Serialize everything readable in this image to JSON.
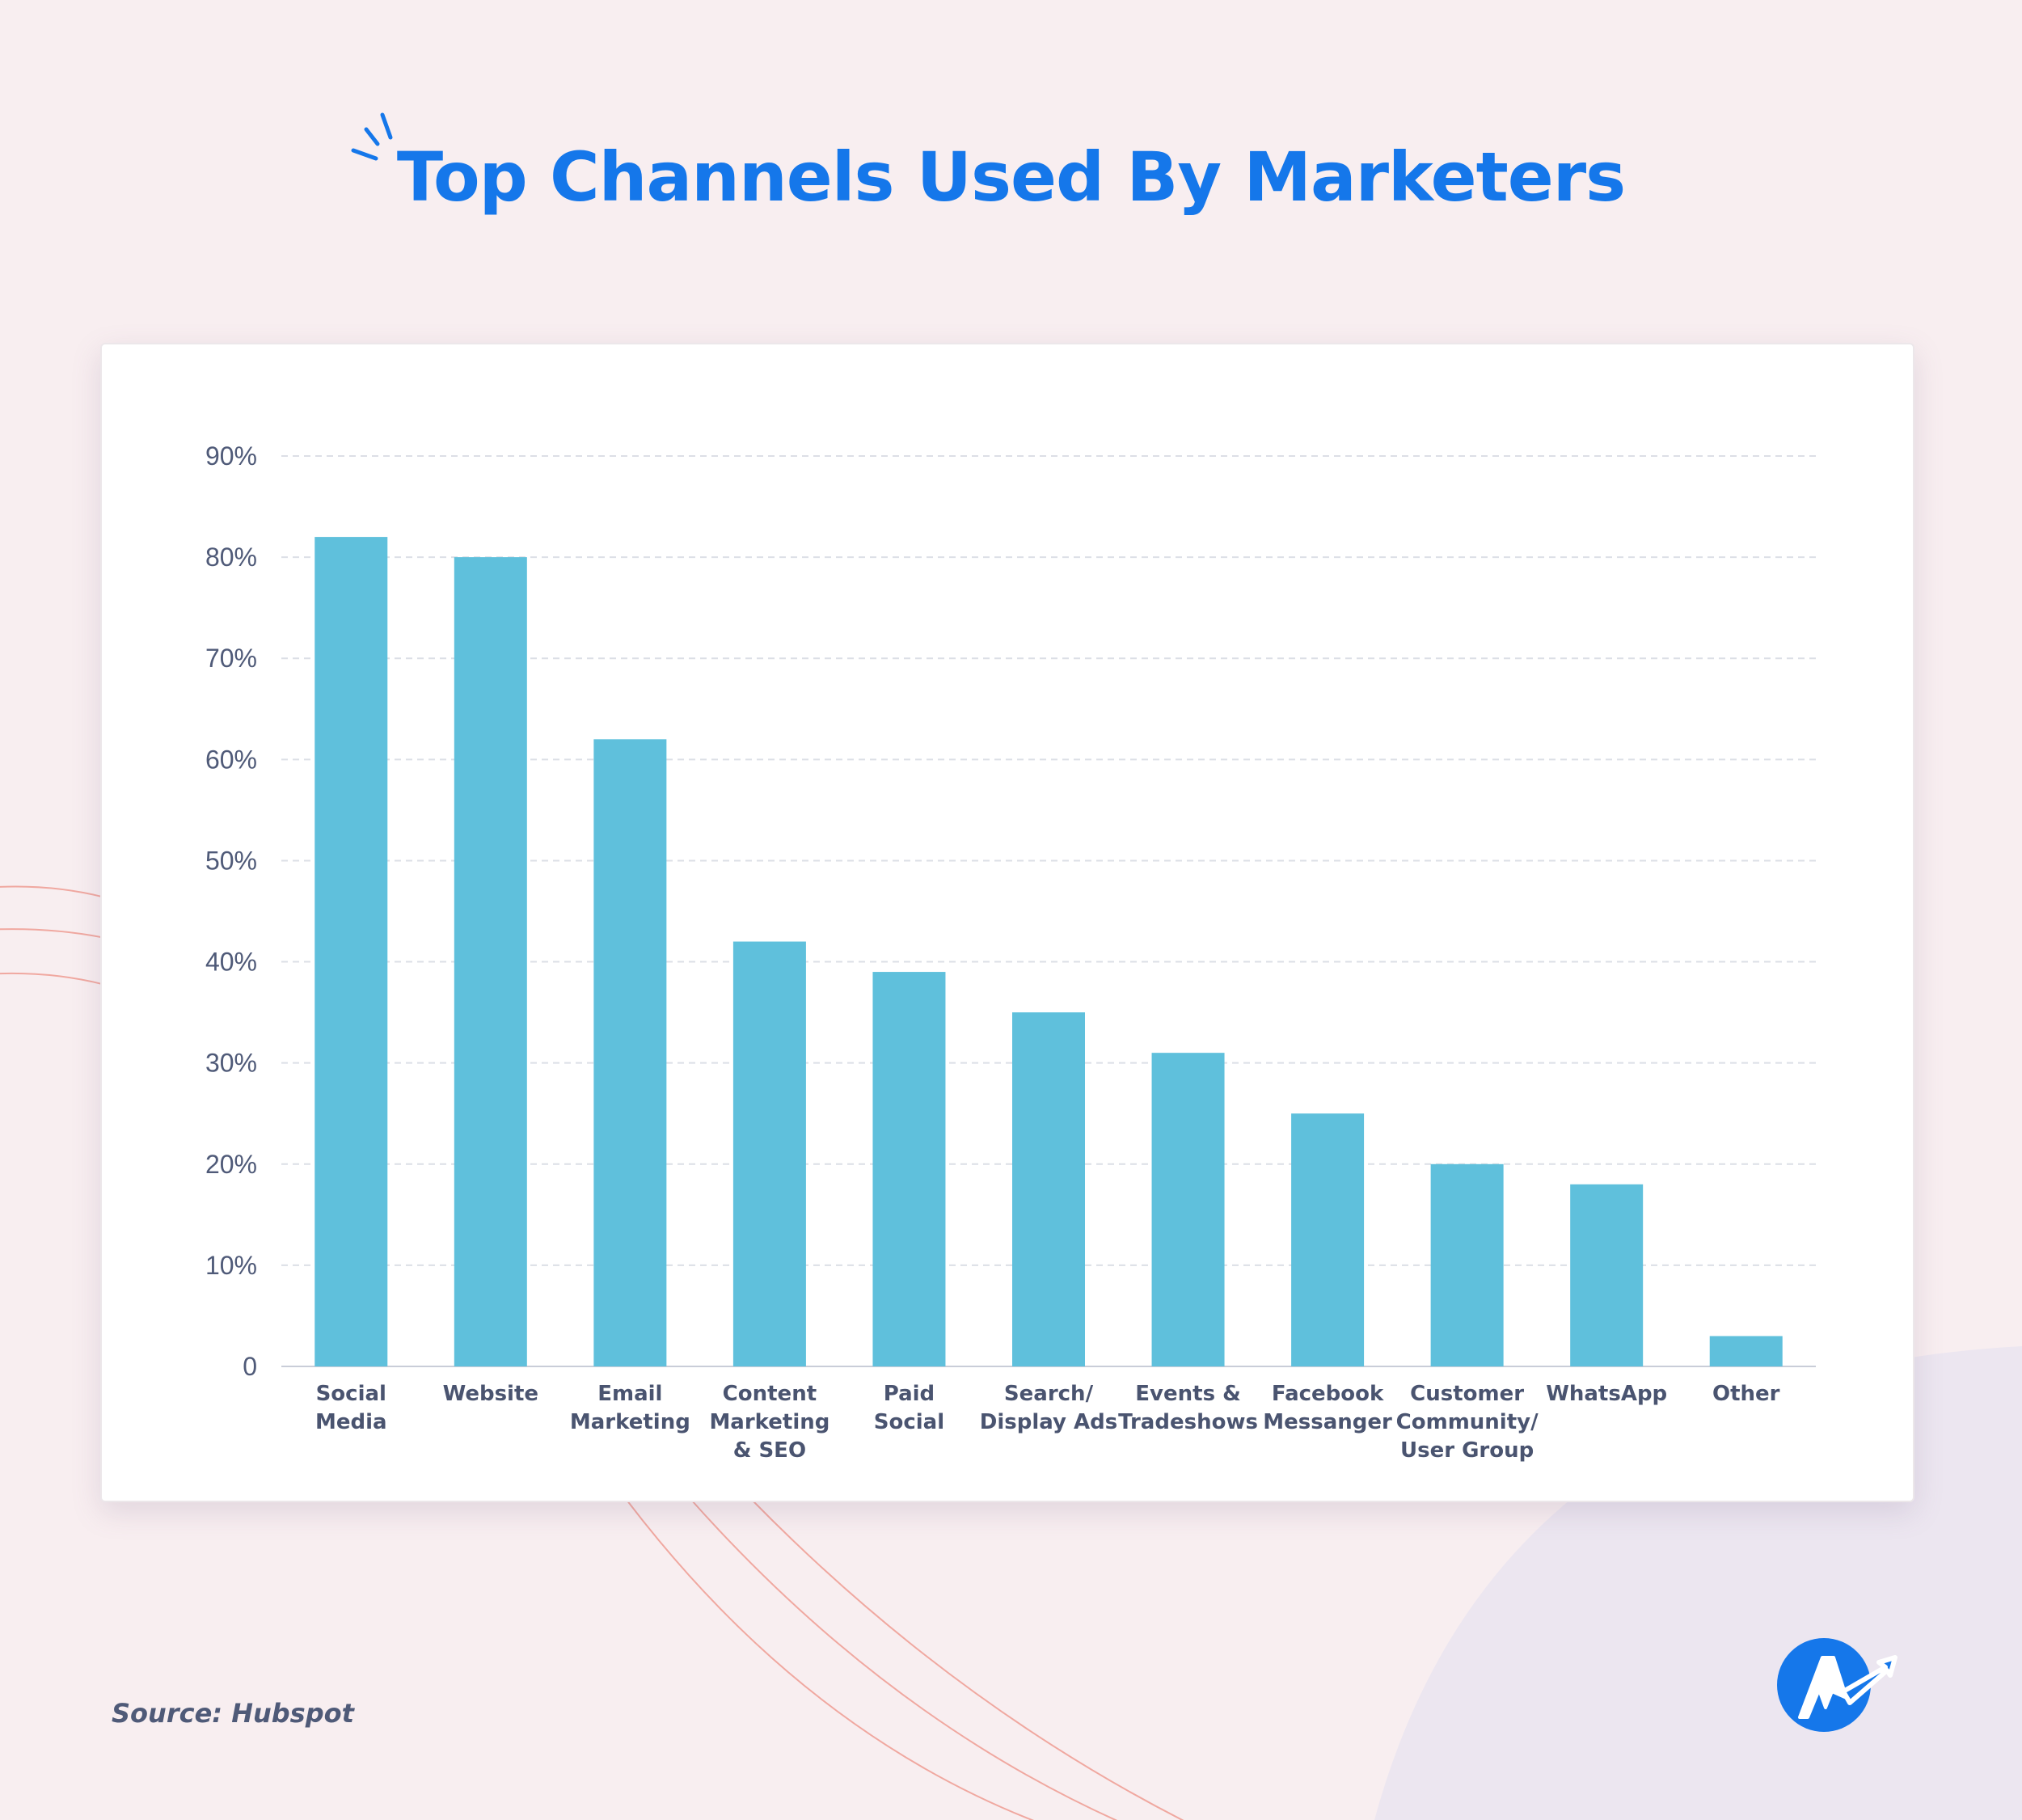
{
  "title": "Top Channels Used By Marketers",
  "source": "Source: Hubspot",
  "colors": {
    "background": "#f8eef0",
    "title": "#1577ea",
    "bar": "#5fc0dc",
    "gridline": "#dcdfe6",
    "deco_line": "#f0a8a0",
    "logo": "#1577ea"
  },
  "chart_data": {
    "type": "bar",
    "title": "Top Channels Used By Marketers",
    "xlabel": "",
    "ylabel": "",
    "ylim": [
      0,
      90
    ],
    "grid": true,
    "y_ticks": [
      "0",
      "10%",
      "20%",
      "30%",
      "40%",
      "50%",
      "60%",
      "70%",
      "80%",
      "90%"
    ],
    "categories": [
      [
        "Social",
        "Media"
      ],
      [
        "Website"
      ],
      [
        "Email",
        "Marketing"
      ],
      [
        "Content",
        "Marketing",
        "& SEO"
      ],
      [
        "Paid",
        "Social"
      ],
      [
        "Search/",
        "Display Ads"
      ],
      [
        "Events &",
        "Tradeshows"
      ],
      [
        "Facebook",
        "Messanger"
      ],
      [
        "Customer",
        "Community/",
        "User Group"
      ],
      [
        "WhatsApp"
      ],
      [
        "Other"
      ]
    ],
    "values": [
      82,
      80,
      62,
      42,
      39,
      35,
      31,
      25,
      20,
      18,
      3
    ]
  },
  "logo_icon": "agency-analytics-logo-icon"
}
